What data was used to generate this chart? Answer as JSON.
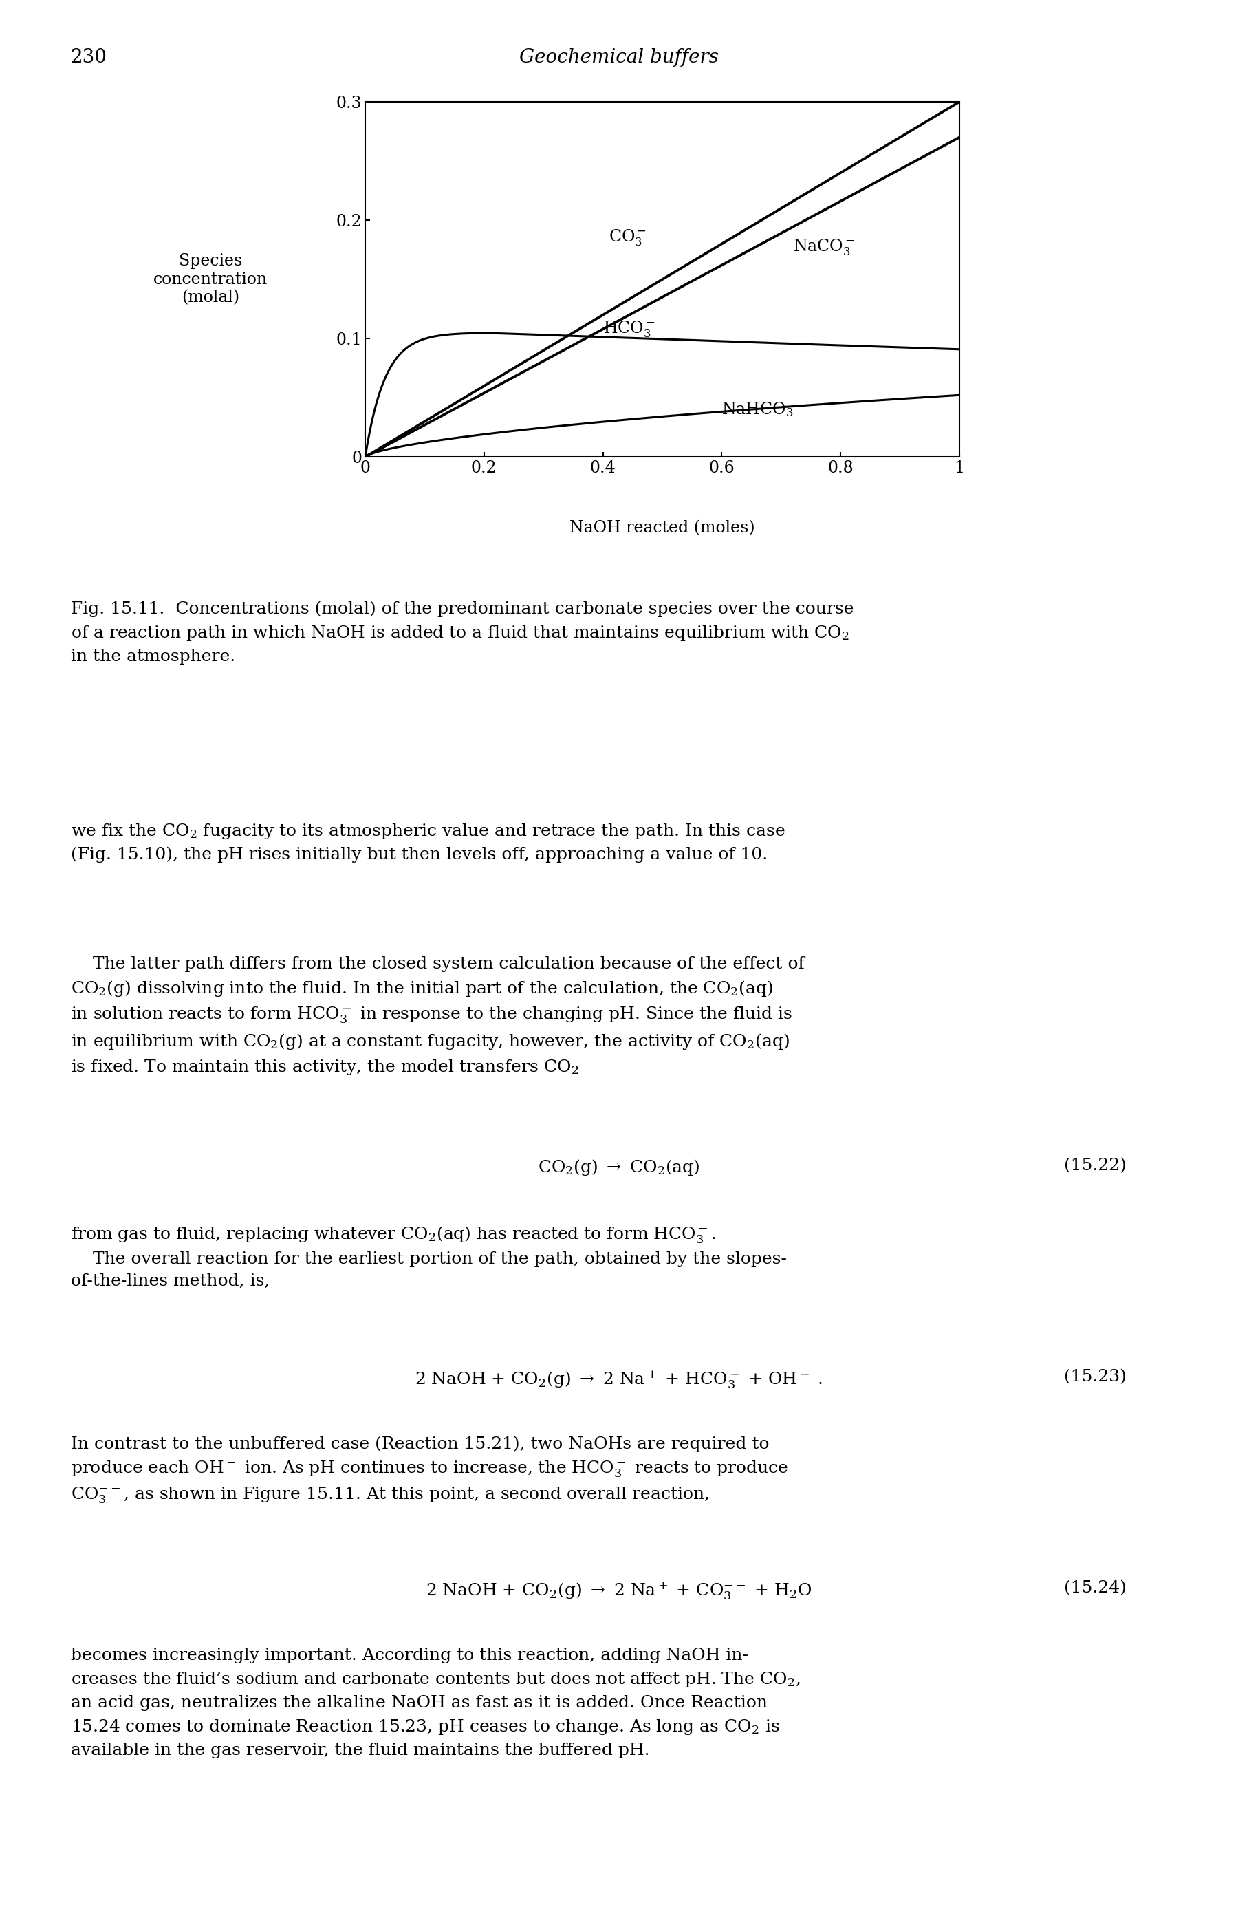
{
  "page_num": "230",
  "header_title": "Geochemical buffers",
  "ylabel": "Species\nconcentration\n(molal)",
  "xlabel": "NaOH reacted (moles)",
  "ylim": [
    0,
    0.3
  ],
  "xlim": [
    0,
    1
  ],
  "yticks": [
    0,
    0.1,
    0.2,
    0.3
  ],
  "xticks": [
    0,
    0.2,
    0.4,
    0.6,
    0.8,
    1
  ],
  "background_color": "#ffffff",
  "text_color": "#000000",
  "line_color": "#000000",
  "line_width": 2.2
}
